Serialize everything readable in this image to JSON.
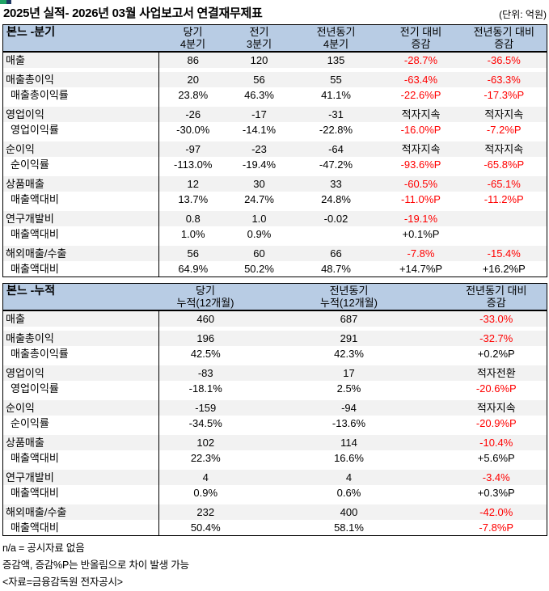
{
  "page": {
    "title": "2025년 실적- 2026년 03월 사업보고서 연결재무제표",
    "unit_label": "(단위: 억원)"
  },
  "colors": {
    "header_bg": "#B8CCE4",
    "row_shade": "#F2F2F2",
    "negative_text": "#FF0000",
    "artifact_green": "#21A366",
    "artifact_navy": "#1F3864"
  },
  "tables": [
    {
      "id": "quarter",
      "corner": "본느 -분기",
      "columns": [
        [
          "당기",
          "4분기"
        ],
        [
          "전기",
          "3분기"
        ],
        [
          "전년동기",
          "4분기"
        ],
        [
          "전기 대비",
          "증감"
        ],
        [
          "전년동기 대비",
          "증감"
        ]
      ],
      "rows": [
        {
          "label": "매출",
          "indent": false,
          "shade": true,
          "values": [
            "86",
            "120",
            "135",
            "-28.7%",
            "-36.5%"
          ],
          "red": [
            3,
            4
          ]
        },
        {
          "label": "매출총이익",
          "indent": false,
          "shade": true,
          "values": [
            "20",
            "56",
            "55",
            "-63.4%",
            "-63.3%"
          ],
          "red": [
            3,
            4
          ]
        },
        {
          "label": "매출총이익률",
          "indent": true,
          "shade": false,
          "values": [
            "23.8%",
            "46.3%",
            "41.1%",
            "-22.6%P",
            "-17.3%P"
          ],
          "red": [
            3,
            4
          ]
        },
        {
          "label": "영업이익",
          "indent": false,
          "shade": true,
          "values": [
            "-26",
            "-17",
            "-31",
            "적자지속",
            "적자지속"
          ],
          "red": []
        },
        {
          "label": "영업이익률",
          "indent": true,
          "shade": false,
          "values": [
            "-30.0%",
            "-14.1%",
            "-22.8%",
            "-16.0%P",
            "-7.2%P"
          ],
          "red": [
            3,
            4
          ]
        },
        {
          "label": "순이익",
          "indent": false,
          "shade": true,
          "values": [
            "-97",
            "-23",
            "-64",
            "적자지속",
            "적자지속"
          ],
          "red": []
        },
        {
          "label": "순이익률",
          "indent": true,
          "shade": false,
          "values": [
            "-113.0%",
            "-19.4%",
            "-47.2%",
            "-93.6%P",
            "-65.8%P"
          ],
          "red": [
            3,
            4
          ]
        },
        {
          "label": "상품매출",
          "indent": false,
          "shade": true,
          "values": [
            "12",
            "30",
            "33",
            "-60.5%",
            "-65.1%"
          ],
          "red": [
            3,
            4
          ]
        },
        {
          "label": "매출액대비",
          "indent": true,
          "shade": false,
          "values": [
            "13.7%",
            "24.7%",
            "24.8%",
            "-11.0%P",
            "-11.2%P"
          ],
          "red": [
            3,
            4
          ]
        },
        {
          "label": "연구개발비",
          "indent": false,
          "shade": true,
          "values": [
            "0.8",
            "1.0",
            "-0.02",
            "-19.1%",
            ""
          ],
          "red": [
            3
          ]
        },
        {
          "label": "매출액대비",
          "indent": true,
          "shade": false,
          "values": [
            "1.0%",
            "0.9%",
            "",
            "+0.1%P",
            ""
          ],
          "red": []
        },
        {
          "label": "해외매출/수출",
          "indent": false,
          "shade": true,
          "values": [
            "56",
            "60",
            "66",
            "-7.8%",
            "-15.4%"
          ],
          "red": [
            3,
            4
          ]
        },
        {
          "label": "매출액대비",
          "indent": true,
          "shade": false,
          "values": [
            "64.9%",
            "50.2%",
            "48.7%",
            "+14.7%P",
            "+16.2%P"
          ],
          "red": []
        }
      ]
    },
    {
      "id": "cumulative",
      "corner": "본느 -누적",
      "columns": [
        [
          "당기",
          "누적(12개월)"
        ],
        [
          "전년동기",
          "누적(12개월)"
        ],
        [
          "전년동기 대비",
          "증감"
        ]
      ],
      "rows": [
        {
          "label": "매출",
          "indent": false,
          "shade": true,
          "values": [
            "460",
            "687",
            "-33.0%"
          ],
          "red": [
            2
          ]
        },
        {
          "label": "매출총이익",
          "indent": false,
          "shade": true,
          "values": [
            "196",
            "291",
            "-32.7%"
          ],
          "red": [
            2
          ]
        },
        {
          "label": "매출총이익률",
          "indent": true,
          "shade": false,
          "values": [
            "42.5%",
            "42.3%",
            "+0.2%P"
          ],
          "red": []
        },
        {
          "label": "영업이익",
          "indent": false,
          "shade": true,
          "values": [
            "-83",
            "17",
            "적자전환"
          ],
          "red": []
        },
        {
          "label": "영업이익률",
          "indent": true,
          "shade": false,
          "values": [
            "-18.1%",
            "2.5%",
            "-20.6%P"
          ],
          "red": [
            2
          ]
        },
        {
          "label": "순이익",
          "indent": false,
          "shade": true,
          "values": [
            "-159",
            "-94",
            "적자지속"
          ],
          "red": []
        },
        {
          "label": "순이익률",
          "indent": true,
          "shade": false,
          "values": [
            "-34.5%",
            "-13.6%",
            "-20.9%P"
          ],
          "red": [
            2
          ]
        },
        {
          "label": "상품매출",
          "indent": false,
          "shade": true,
          "values": [
            "102",
            "114",
            "-10.4%"
          ],
          "red": [
            2
          ]
        },
        {
          "label": "매출액대비",
          "indent": true,
          "shade": false,
          "values": [
            "22.3%",
            "16.6%",
            "+5.6%P"
          ],
          "red": []
        },
        {
          "label": "연구개발비",
          "indent": false,
          "shade": true,
          "values": [
            "4",
            "4",
            "-3.4%"
          ],
          "red": [
            2
          ]
        },
        {
          "label": "매출액대비",
          "indent": true,
          "shade": false,
          "values": [
            "0.9%",
            "0.6%",
            "+0.3%P"
          ],
          "red": []
        },
        {
          "label": "해외매출/수출",
          "indent": false,
          "shade": true,
          "values": [
            "232",
            "400",
            "-42.0%"
          ],
          "red": [
            2
          ]
        },
        {
          "label": "매출액대비",
          "indent": true,
          "shade": false,
          "values": [
            "50.4%",
            "58.1%",
            "-7.8%P"
          ],
          "red": [
            2
          ]
        }
      ]
    }
  ],
  "footnotes": [
    "n/a = 공시자료 없음",
    "증감액, 증감%P는 반올림으로 차이 발생 가능",
    "<자료=금융감독원 전자공시>"
  ]
}
